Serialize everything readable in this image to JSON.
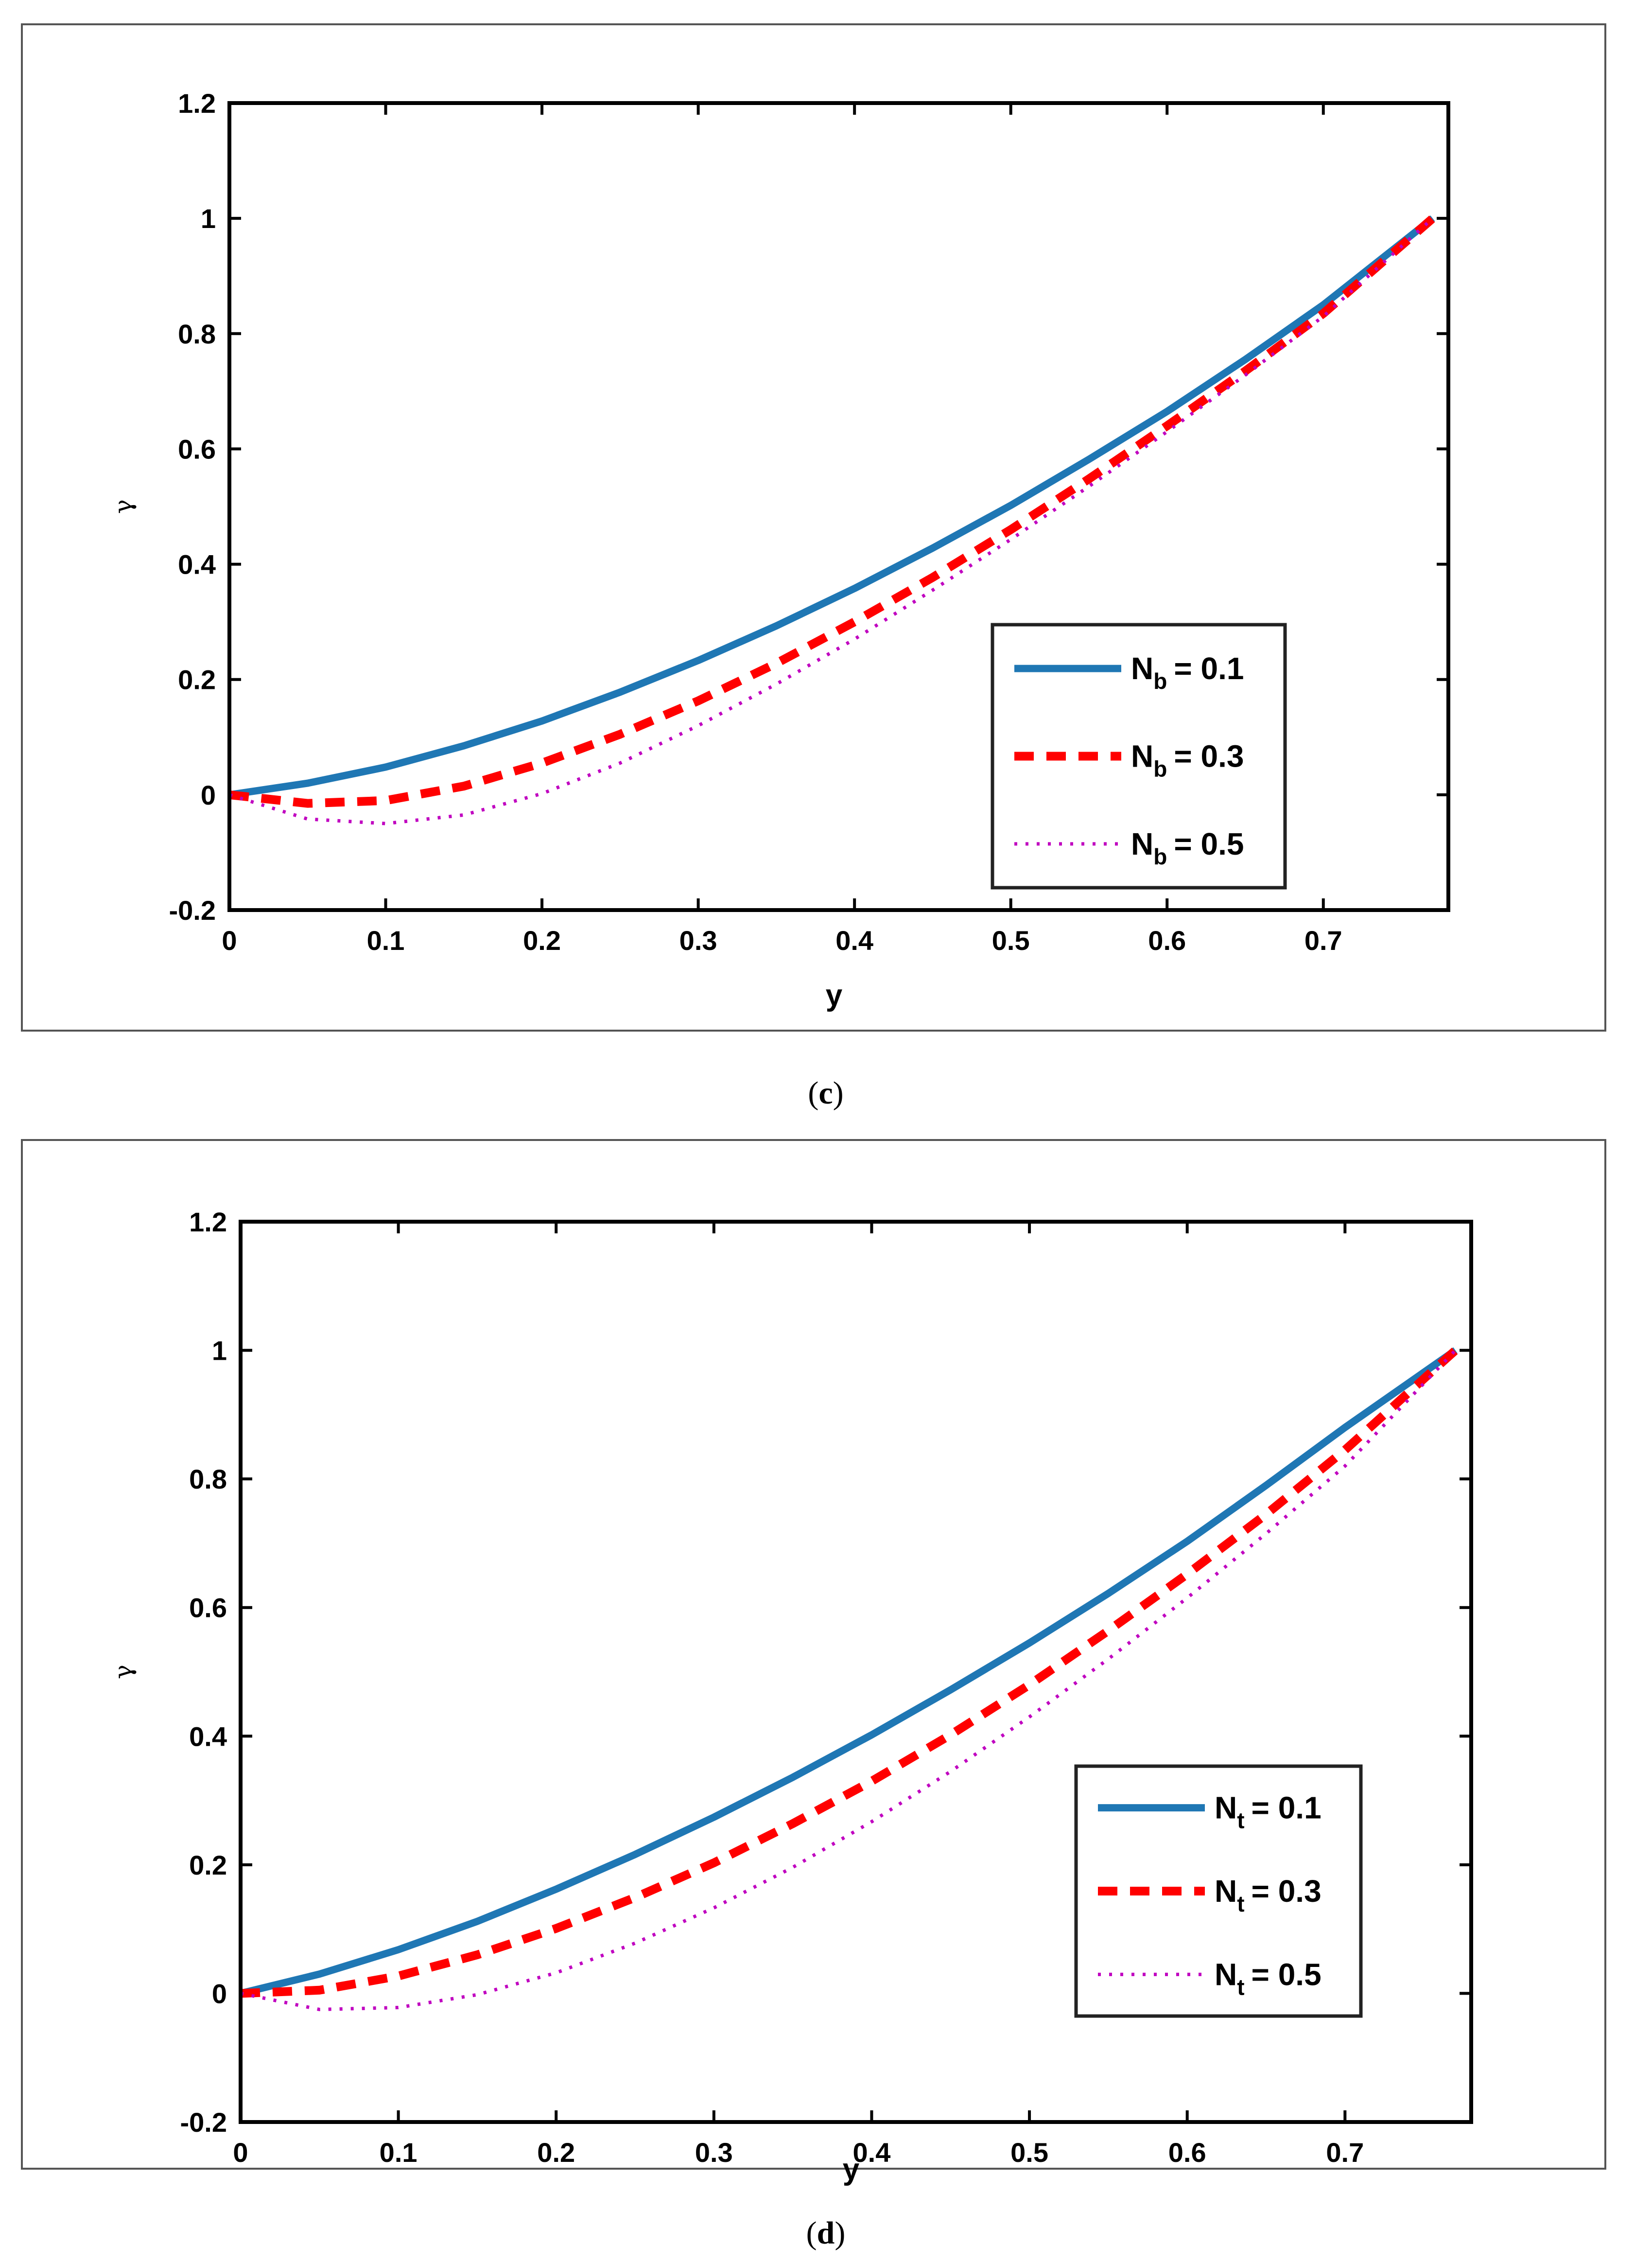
{
  "colors": {
    "series1": "#1f77b4",
    "series2": "#ff0000",
    "series3": "#c000c0",
    "frame": "#000000",
    "box": "#444444"
  },
  "chart_data": [
    {
      "type": "line",
      "panel": "c",
      "caption": {
        "open": "(",
        "letter": "c",
        "close": ")"
      },
      "xlabel": "y",
      "ylabel": "γ",
      "xlim": [
        0,
        0.78
      ],
      "ylim": [
        -0.2,
        1.2
      ],
      "xticks": [
        "0",
        "0.1",
        "0.2",
        "0.3",
        "0.4",
        "0.5",
        "0.6",
        "0.7"
      ],
      "yticks": [
        "-0.2",
        "0",
        "0.2",
        "0.4",
        "0.6",
        "0.8",
        "1",
        "1.2"
      ],
      "xtick_values": [
        0,
        0.1,
        0.2,
        0.3,
        0.4,
        0.5,
        0.6,
        0.7
      ],
      "ytick_values": [
        -0.2,
        0,
        0.2,
        0.4,
        0.6,
        0.8,
        1,
        1.2
      ],
      "legend": {
        "position": "bottom-right",
        "param": "N",
        "sub": "b"
      },
      "series": [
        {
          "name": "Nb = 0.1",
          "label_eq": "= 0.1",
          "style": "solid",
          "x": [
            0,
            0.05,
            0.1,
            0.15,
            0.2,
            0.25,
            0.3,
            0.35,
            0.4,
            0.45,
            0.5,
            0.55,
            0.6,
            0.65,
            0.7,
            0.77
          ],
          "y": [
            0,
            0.02,
            0.048,
            0.085,
            0.128,
            0.178,
            0.233,
            0.293,
            0.358,
            0.428,
            0.502,
            0.582,
            0.665,
            0.755,
            0.85,
            1.0
          ]
        },
        {
          "name": "Nb = 0.3",
          "label_eq": "= 0.3",
          "style": "dashed",
          "x": [
            0,
            0.05,
            0.1,
            0.15,
            0.2,
            0.25,
            0.3,
            0.35,
            0.4,
            0.45,
            0.5,
            0.55,
            0.6,
            0.65,
            0.7,
            0.77
          ],
          "y": [
            0,
            -0.015,
            -0.01,
            0.015,
            0.055,
            0.105,
            0.163,
            0.228,
            0.3,
            0.377,
            0.46,
            0.548,
            0.64,
            0.735,
            0.835,
            1.0
          ]
        },
        {
          "name": "Nb = 0.5",
          "label_eq": "= 0.5",
          "style": "dotted",
          "x": [
            0,
            0.05,
            0.1,
            0.15,
            0.2,
            0.25,
            0.3,
            0.35,
            0.4,
            0.45,
            0.5,
            0.55,
            0.6,
            0.65,
            0.7,
            0.77
          ],
          "y": [
            0,
            -0.042,
            -0.05,
            -0.035,
            0.002,
            0.055,
            0.12,
            0.192,
            0.27,
            0.355,
            0.443,
            0.535,
            0.63,
            0.728,
            0.83,
            1.0
          ]
        }
      ]
    },
    {
      "type": "line",
      "panel": "d",
      "caption": {
        "open": "(",
        "letter": "d",
        "close": ")"
      },
      "xlabel": "y",
      "ylabel": "γ",
      "xlim": [
        0,
        0.78
      ],
      "ylim": [
        -0.2,
        1.2
      ],
      "xticks": [
        "0",
        "0.1",
        "0.2",
        "0.3",
        "0.4",
        "0.5",
        "0.6",
        "0.7"
      ],
      "yticks": [
        "-0.2",
        "0",
        "0.2",
        "0.4",
        "0.6",
        "0.8",
        "1",
        "1.2"
      ],
      "xtick_values": [
        0,
        0.1,
        0.2,
        0.3,
        0.4,
        0.5,
        0.6,
        0.7
      ],
      "ytick_values": [
        -0.2,
        0,
        0.2,
        0.4,
        0.6,
        0.8,
        1,
        1.2
      ],
      "legend": {
        "position": "bottom-right",
        "param": "N",
        "sub": "t"
      },
      "series": [
        {
          "name": "Nt = 0.1",
          "label_eq": "= 0.1",
          "style": "solid",
          "x": [
            0,
            0.05,
            0.1,
            0.15,
            0.2,
            0.25,
            0.3,
            0.35,
            0.4,
            0.45,
            0.5,
            0.55,
            0.6,
            0.65,
            0.7,
            0.77
          ],
          "y": [
            0,
            0.03,
            0.068,
            0.112,
            0.162,
            0.216,
            0.274,
            0.336,
            0.402,
            0.472,
            0.545,
            0.622,
            0.703,
            0.79,
            0.88,
            1.0
          ]
        },
        {
          "name": "Nt = 0.3",
          "label_eq": "= 0.3",
          "style": "dashed",
          "x": [
            0,
            0.05,
            0.1,
            0.15,
            0.2,
            0.25,
            0.3,
            0.35,
            0.4,
            0.45,
            0.5,
            0.55,
            0.6,
            0.65,
            0.7,
            0.77
          ],
          "y": [
            0,
            0.005,
            0.027,
            0.06,
            0.101,
            0.149,
            0.203,
            0.264,
            0.33,
            0.402,
            0.48,
            0.564,
            0.652,
            0.745,
            0.845,
            1.0
          ]
        },
        {
          "name": "Nt = 0.5",
          "label_eq": "= 0.5",
          "style": "dotted",
          "x": [
            0,
            0.05,
            0.1,
            0.15,
            0.2,
            0.25,
            0.3,
            0.35,
            0.4,
            0.45,
            0.5,
            0.55,
            0.6,
            0.65,
            0.7,
            0.77
          ],
          "y": [
            0,
            -0.025,
            -0.022,
            -0.002,
            0.032,
            0.078,
            0.133,
            0.196,
            0.267,
            0.345,
            0.43,
            0.52,
            0.615,
            0.715,
            0.82,
            1.0
          ]
        }
      ]
    }
  ]
}
